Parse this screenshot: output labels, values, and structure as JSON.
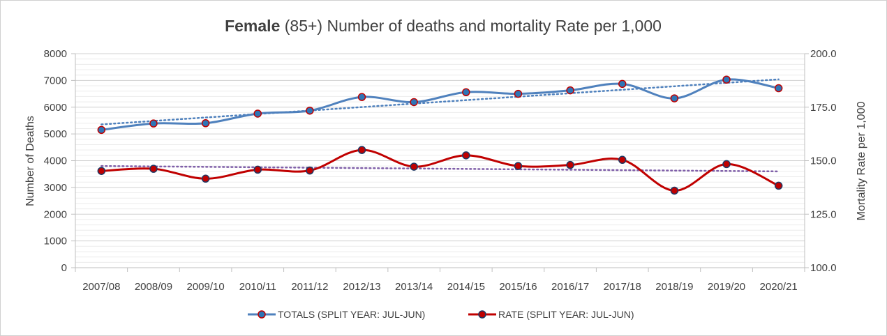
{
  "chart_data": {
    "type": "line",
    "title": {
      "bold": "Female",
      "rest": " (85+) Number of deaths and mortality Rate per 1,000"
    },
    "xlabel": "",
    "ylabel": "Number of Deaths",
    "y2label": "Mortality Rate per 1,000",
    "categories": [
      "2007/08",
      "2008/09",
      "2009/10",
      "2010/11",
      "2011/12",
      "2012/13",
      "2013/14",
      "2014/15",
      "2015/16",
      "2016/17",
      "2017/18",
      "2018/19",
      "2019/20",
      "2020/21"
    ],
    "ylim": [
      0,
      8000
    ],
    "y_ticks": [
      0,
      1000,
      2000,
      3000,
      4000,
      5000,
      6000,
      7000,
      8000
    ],
    "y_tick_labels": [
      "0",
      "1000",
      "2000",
      "3000",
      "4000",
      "5000",
      "6000",
      "7000",
      "8000"
    ],
    "y2lim": [
      100,
      200
    ],
    "y2_ticks": [
      100,
      125,
      150,
      175,
      200
    ],
    "y2_tick_labels": [
      "100.0",
      "125.0",
      "150.0",
      "175.0",
      "200.0"
    ],
    "grid": true,
    "legend_position": "bottom",
    "series": [
      {
        "name": "TOTALS (SPLIT YEAR: JUL-JUN)",
        "axis": "left",
        "color": "#4f81bd",
        "marker_fill": "#2e75b6",
        "marker_edge": "#c00000",
        "trendline": true,
        "values": [
          5150,
          5390,
          5400,
          5760,
          5870,
          6380,
          6190,
          6560,
          6500,
          6630,
          6870,
          6330,
          7030,
          6710
        ]
      },
      {
        "name": "RATE (SPLIT YEAR: JUL-JUN)",
        "axis": "right",
        "color": "#c00000",
        "marker_fill": "#c00000",
        "marker_edge": "#1f3864",
        "trendline": true,
        "values": [
          145.2,
          146.2,
          141.6,
          145.8,
          145.4,
          155.0,
          147.2,
          152.5,
          147.5,
          148.0,
          150.4,
          136.0,
          148.4,
          138.3
        ]
      }
    ]
  }
}
